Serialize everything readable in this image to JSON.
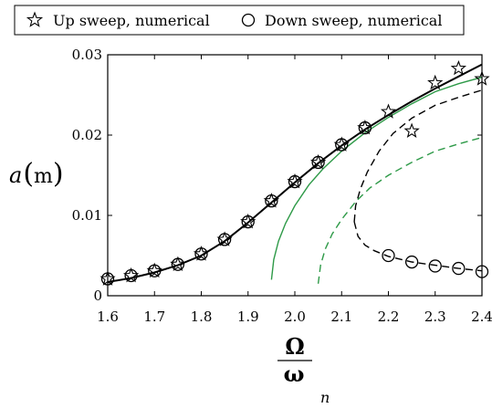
{
  "chart_data": {
    "type": "line",
    "title": "",
    "xlabel": {
      "numerator": "Ω",
      "denominator": "ω",
      "subscript": "n"
    },
    "ylabel": {
      "symbol": "a",
      "unit": "m"
    },
    "xlim": [
      1.6,
      2.4
    ],
    "ylim": [
      0,
      0.03
    ],
    "x_ticks": [
      1.6,
      1.7,
      1.8,
      1.9,
      2.0,
      2.1,
      2.2,
      2.3,
      2.4
    ],
    "x_tick_labels": [
      "1.6",
      "1.7",
      "1.8",
      "1.9",
      "2.0",
      "2.1",
      "2.2",
      "2.3",
      "2.4"
    ],
    "y_ticks": [
      0,
      0.01,
      0.02,
      0.03
    ],
    "y_tick_labels": [
      "0",
      "0.01",
      "0.02",
      "0.03"
    ],
    "grid": false,
    "legend_position": "top",
    "legend": [
      {
        "label": "Up sweep, numerical",
        "marker": "star"
      },
      {
        "label": "Down sweep, numerical",
        "marker": "circle"
      }
    ],
    "series": [
      {
        "style": "black-solid",
        "color": "#000000",
        "dash": false,
        "x": [
          1.6,
          1.65,
          1.7,
          1.75,
          1.8,
          1.85,
          1.9,
          1.95,
          2.0,
          2.05,
          2.1,
          2.15,
          2.2,
          2.25,
          2.3,
          2.35,
          2.4
        ],
        "y": [
          0.0017,
          0.0022,
          0.0029,
          0.0038,
          0.005,
          0.0068,
          0.0091,
          0.0116,
          0.0141,
          0.0165,
          0.0187,
          0.0207,
          0.0225,
          0.0242,
          0.0258,
          0.0273,
          0.0288
        ]
      },
      {
        "style": "green-solid",
        "color": "#2e9a48",
        "dash": false,
        "x": [
          1.95,
          1.955,
          1.965,
          1.98,
          2.0,
          2.03,
          2.06,
          2.1,
          2.15,
          2.2,
          2.25,
          2.3,
          2.35,
          2.4
        ],
        "y": [
          0.002,
          0.0045,
          0.0068,
          0.009,
          0.0112,
          0.0138,
          0.0158,
          0.018,
          0.0203,
          0.0222,
          0.0239,
          0.0254,
          0.0264,
          0.0272
        ]
      },
      {
        "style": "green-dashed",
        "color": "#2e9a48",
        "dash": true,
        "x": [
          2.05,
          2.055,
          2.065,
          2.08,
          2.1,
          2.13,
          2.16,
          2.2,
          2.25,
          2.3,
          2.35,
          2.4
        ],
        "y": [
          0.0015,
          0.0038,
          0.0058,
          0.0077,
          0.0095,
          0.0117,
          0.0134,
          0.015,
          0.0166,
          0.018,
          0.0189,
          0.0197
        ]
      },
      {
        "style": "black-dashed-upper",
        "color": "#000000",
        "dash": true,
        "x": [
          2.127,
          2.13,
          2.14,
          2.155,
          2.18,
          2.21,
          2.25,
          2.3,
          2.35,
          2.4
        ],
        "y": [
          0.0092,
          0.0112,
          0.0133,
          0.0154,
          0.018,
          0.0202,
          0.0221,
          0.0237,
          0.0247,
          0.0256
        ]
      },
      {
        "style": "black-dashed-lower",
        "color": "#000000",
        "dash": true,
        "x": [
          2.127,
          2.135,
          2.15,
          2.17,
          2.2,
          2.25,
          2.3,
          2.35,
          2.4
        ],
        "y": [
          0.0092,
          0.0074,
          0.0063,
          0.0056,
          0.0049,
          0.0042,
          0.0038,
          0.0034,
          0.0031
        ]
      }
    ],
    "scatter": [
      {
        "name": "Up sweep, numerical",
        "marker": "star",
        "x": [
          1.6,
          1.65,
          1.7,
          1.75,
          1.8,
          1.85,
          1.9,
          1.95,
          2.0,
          2.05,
          2.1,
          2.15,
          2.2,
          2.25,
          2.3,
          2.35,
          2.4
        ],
        "y": [
          0.0021,
          0.0025,
          0.0031,
          0.0039,
          0.0052,
          0.007,
          0.0092,
          0.0118,
          0.0142,
          0.0166,
          0.0188,
          0.0209,
          0.0229,
          0.0205,
          0.0265,
          0.0283,
          0.027
        ]
      },
      {
        "name": "Down sweep, numerical",
        "marker": "circle",
        "x": [
          1.6,
          1.65,
          1.7,
          1.75,
          1.8,
          1.85,
          1.9,
          1.95,
          2.0,
          2.05,
          2.1,
          2.15,
          2.2,
          2.25,
          2.3,
          2.35,
          2.4
        ],
        "y": [
          0.0021,
          0.0025,
          0.0031,
          0.0039,
          0.0052,
          0.007,
          0.0092,
          0.0118,
          0.0142,
          0.0166,
          0.0188,
          0.0209,
          0.005,
          0.0042,
          0.0037,
          0.0034,
          0.003
        ]
      }
    ]
  }
}
